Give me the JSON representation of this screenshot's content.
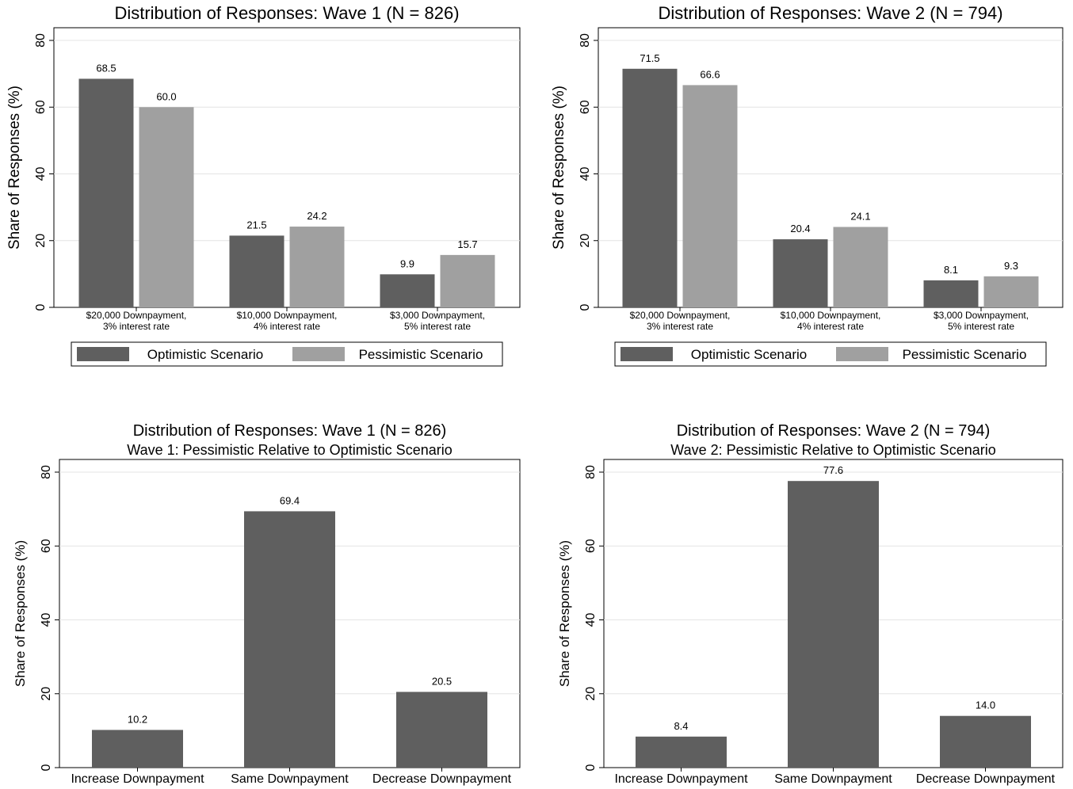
{
  "chart_data": [
    {
      "type": "bar",
      "title": "Distribution of Responses: Wave 1 (N = 826)",
      "subtitle": "",
      "ylabel": "Share of Responses (%)",
      "xlabel": "",
      "ylim": [
        0,
        80
      ],
      "yticks": [
        0,
        20,
        40,
        60,
        80
      ],
      "grid": true,
      "legend_position": "bottom",
      "categories": [
        [
          "$20,000 Downpayment,",
          "3% interest rate"
        ],
        [
          "$10,000 Downpayment,",
          "4% interest rate"
        ],
        [
          "$3,000 Downpayment,",
          "5% interest rate"
        ]
      ],
      "series": [
        {
          "name": "Optimistic Scenario",
          "color": "#5f5f5f",
          "values": [
            68.5,
            21.5,
            9.9
          ],
          "labels": [
            "68.5",
            "21.5",
            "9.9"
          ]
        },
        {
          "name": "Pessimistic Scenario",
          "color": "#a0a0a0",
          "values": [
            60.0,
            24.2,
            15.7
          ],
          "labels": [
            "60.0",
            "24.2",
            "15.7"
          ]
        }
      ]
    },
    {
      "type": "bar",
      "title": "Distribution of Responses: Wave 2 (N = 794)",
      "subtitle": "",
      "ylabel": "Share of Responses (%)",
      "xlabel": "",
      "ylim": [
        0,
        80
      ],
      "yticks": [
        0,
        20,
        40,
        60,
        80
      ],
      "grid": true,
      "legend_position": "bottom",
      "categories": [
        [
          "$20,000 Downpayment,",
          "3% interest rate"
        ],
        [
          "$10,000 Downpayment,",
          "4% interest rate"
        ],
        [
          "$3,000 Downpayment,",
          "5% interest rate"
        ]
      ],
      "series": [
        {
          "name": "Optimistic Scenario",
          "color": "#5f5f5f",
          "values": [
            71.5,
            20.4,
            8.1
          ],
          "labels": [
            "71.5",
            "20.4",
            "8.1"
          ]
        },
        {
          "name": "Pessimistic Scenario",
          "color": "#a0a0a0",
          "values": [
            66.6,
            24.1,
            9.3
          ],
          "labels": [
            "66.6",
            "24.1",
            "9.3"
          ]
        }
      ]
    },
    {
      "type": "bar",
      "title": "Distribution of Responses: Wave 1 (N = 826)",
      "subtitle": "Wave 1: Pessimistic Relative to Optimistic Scenario",
      "ylabel": "Share of Responses (%)",
      "xlabel": "",
      "ylim": [
        0,
        80
      ],
      "yticks": [
        0,
        20,
        40,
        60,
        80
      ],
      "grid": true,
      "legend_position": "none",
      "categories": [
        [
          "Increase Downpayment"
        ],
        [
          "Same Downpayment"
        ],
        [
          "Decrease Downpayment"
        ]
      ],
      "series": [
        {
          "color": "#5f5f5f",
          "values": [
            10.2,
            69.4,
            20.5
          ],
          "labels": [
            "10.2",
            "69.4",
            "20.5"
          ]
        }
      ]
    },
    {
      "type": "bar",
      "title": "Distribution of Responses: Wave 2 (N = 794)",
      "subtitle": "Wave 2: Pessimistic Relative to Optimistic Scenario",
      "ylabel": "Share of Responses (%)",
      "xlabel": "",
      "ylim": [
        0,
        80
      ],
      "yticks": [
        0,
        20,
        40,
        60,
        80
      ],
      "grid": true,
      "legend_position": "none",
      "categories": [
        [
          "Increase Downpayment"
        ],
        [
          "Same Downpayment"
        ],
        [
          "Decrease Downpayment"
        ]
      ],
      "series": [
        {
          "color": "#5f5f5f",
          "values": [
            8.4,
            77.6,
            14.0
          ],
          "labels": [
            "8.4",
            "77.6",
            "14.0"
          ]
        }
      ]
    }
  ]
}
